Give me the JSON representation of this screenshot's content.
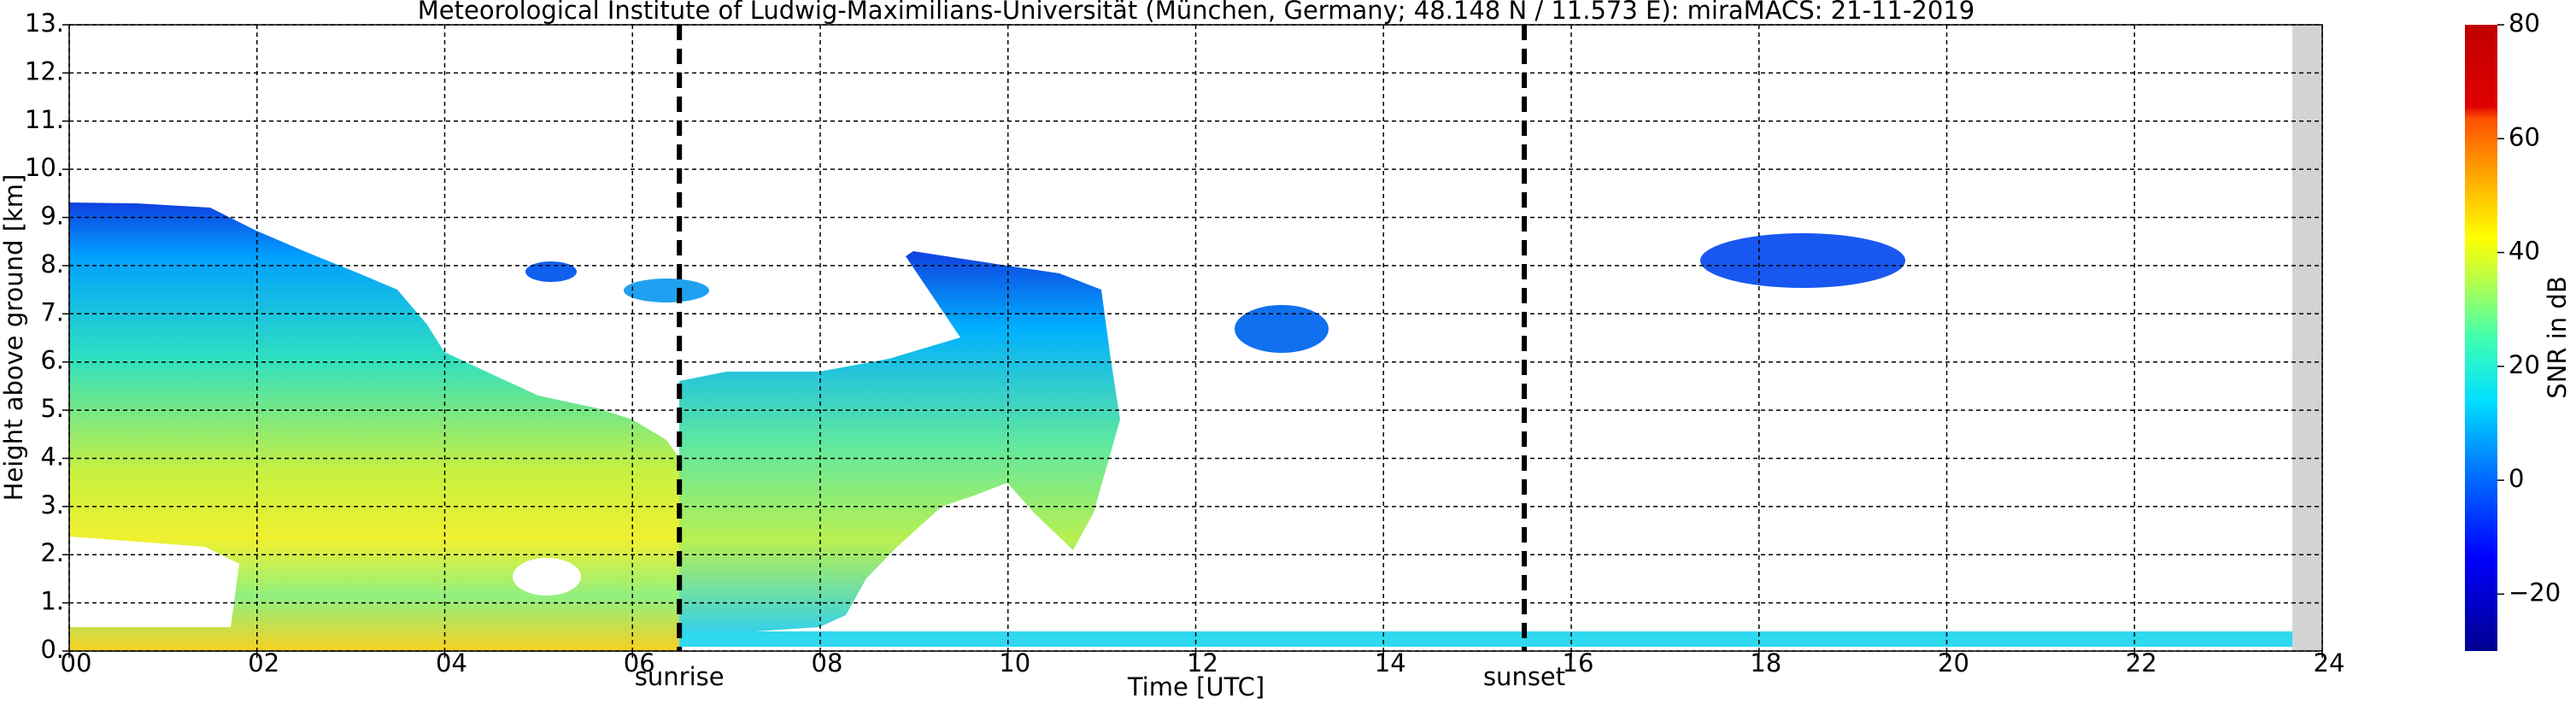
{
  "chart_data": {
    "type": "time-height",
    "title": "Meteorological Institute of Ludwig-Maximilians-Universität (München, Germany; 48.148 N / 11.573 E):    miraMACS: 21-11-2019",
    "xlabel": "Time [UTC]",
    "ylabel": "Height above ground [km]",
    "xlim": [
      0,
      24
    ],
    "ylim": [
      0,
      13
    ],
    "xticks": [
      {
        "value": 0,
        "label": "00"
      },
      {
        "value": 2,
        "label": "02"
      },
      {
        "value": 4,
        "label": "04"
      },
      {
        "value": 6,
        "label": "06"
      },
      {
        "value": 8,
        "label": "08"
      },
      {
        "value": 10,
        "label": "10"
      },
      {
        "value": 12,
        "label": "12"
      },
      {
        "value": 14,
        "label": "14"
      },
      {
        "value": 16,
        "label": "16"
      },
      {
        "value": 18,
        "label": "18"
      },
      {
        "value": 20,
        "label": "20"
      },
      {
        "value": 22,
        "label": "22"
      },
      {
        "value": 24,
        "label": "24"
      }
    ],
    "yticks": [
      {
        "value": 0,
        "label": "0."
      },
      {
        "value": 1,
        "label": "1."
      },
      {
        "value": 2,
        "label": "2."
      },
      {
        "value": 3,
        "label": "3."
      },
      {
        "value": 4,
        "label": "4."
      },
      {
        "value": 5,
        "label": "5."
      },
      {
        "value": 6,
        "label": "6."
      },
      {
        "value": 7,
        "label": "7."
      },
      {
        "value": 8,
        "label": "8."
      },
      {
        "value": 9,
        "label": "9."
      },
      {
        "value": 10,
        "label": "10."
      },
      {
        "value": 11,
        "label": "11."
      },
      {
        "value": 12,
        "label": "12."
      },
      {
        "value": 13,
        "label": "13."
      }
    ],
    "grid": true,
    "annotations": [
      {
        "text": "sunrise",
        "x": 6.5
      },
      {
        "text": "sunset",
        "x": 15.5
      }
    ],
    "colorbar": {
      "label": "SNR in dB",
      "lim": [
        -30,
        80
      ],
      "ticks": [
        {
          "value": -20,
          "label": "−20"
        },
        0,
        20,
        40,
        60,
        80
      ]
    }
  }
}
